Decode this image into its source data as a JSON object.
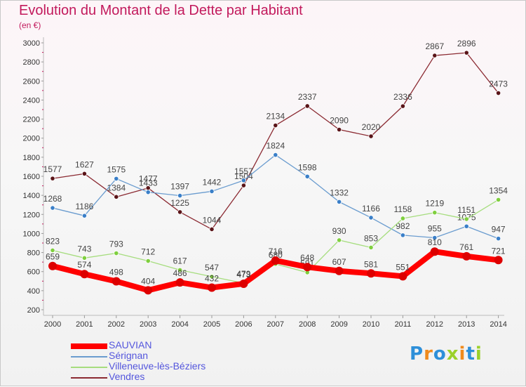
{
  "title": "Evolution du Montant de la Dette par Habitant",
  "subtitle": "(en €)",
  "logo": {
    "text": "Proxiti",
    "colors": [
      "#2d8fd9",
      "#f08a1c",
      "#2d8fd9",
      "#9bd12a",
      "#f08a1c",
      "#2d8fd9",
      "#9bd12a"
    ]
  },
  "chart_data": {
    "type": "line",
    "title": "Evolution du Montant de la Dette par Habitant",
    "subtitle": "(en €)",
    "xlabel": "",
    "ylabel": "",
    "ylim": [
      200,
      3000
    ],
    "yticks": [
      200,
      400,
      600,
      800,
      1000,
      1200,
      1400,
      1600,
      1800,
      2000,
      2200,
      2400,
      2600,
      2800,
      3000
    ],
    "grid": false,
    "legend_position": "bottom-left",
    "x": [
      2000,
      2001,
      2002,
      2003,
      2004,
      2005,
      2006,
      2007,
      2008,
      2009,
      2010,
      2011,
      2012,
      2013,
      2014
    ],
    "series": [
      {
        "name": "Vendres",
        "color": "#8b2a32",
        "marker": "#5a1418",
        "width": 1.3,
        "values": [
          1577,
          1627,
          1384,
          1477,
          1225,
          1044,
          1504,
          2134,
          2337,
          2090,
          2020,
          2336,
          2867,
          2896,
          2473
        ]
      },
      {
        "name": "Sérignan",
        "color": "#6a9ccf",
        "marker": "#3a7fc8",
        "width": 1.3,
        "values": [
          1268,
          1186,
          1575,
          1433,
          1397,
          1442,
          1557,
          1824,
          1598,
          1332,
          1166,
          982,
          955,
          1075,
          947
        ]
      },
      {
        "name": "Villeneuve-lès-Béziers",
        "color": "#a6dd7e",
        "marker": "#7fcf3e",
        "width": 1.3,
        "values": [
          823,
          743,
          793,
          712,
          617,
          547,
          479,
          680,
          591,
          930,
          853,
          1158,
          1219,
          1151,
          1354
        ]
      },
      {
        "name": "SAUVIAN",
        "color": "#ff0000",
        "marker": "#dd0000",
        "width": 8,
        "values": [
          659,
          574,
          498,
          404,
          486,
          432,
          473,
          716,
          648,
          607,
          581,
          551,
          810,
          761,
          721
        ]
      }
    ]
  }
}
